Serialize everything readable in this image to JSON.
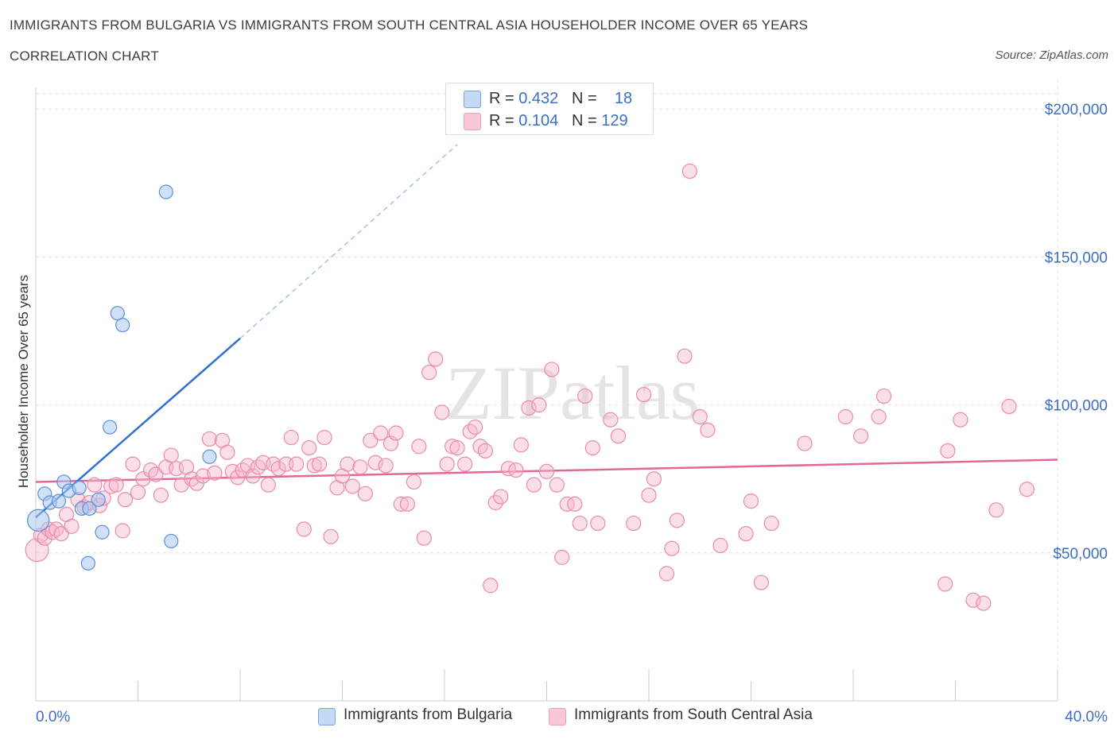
{
  "header": {
    "title": "IMMIGRANTS FROM BULGARIA VS IMMIGRANTS FROM SOUTH CENTRAL ASIA HOUSEHOLDER INCOME OVER 65 YEARS",
    "subtitle": "CORRELATION CHART",
    "source": "Source: ZipAtlas.com"
  },
  "watermark": "ZIPatlas",
  "legend_top": {
    "rows": [
      {
        "r_label": "R = ",
        "r_value": "0.432",
        "n_label": "N = ",
        "n_value": "18"
      },
      {
        "r_label": "R = ",
        "r_value": "0.104",
        "n_label": "N = ",
        "n_value": "129"
      }
    ]
  },
  "colors": {
    "bulgaria_fill": "#a9c8f0",
    "bulgaria_stroke": "#5b8fd6",
    "bulgaria_line": "#2f6fce",
    "sca_fill": "#f6b8cb",
    "sca_stroke": "#e98aa9",
    "sca_line": "#e2679a",
    "axis_text": "#3c6fc4",
    "grid": "#e3e3e3"
  },
  "chart_data": {
    "type": "scatter",
    "title": "IMMIGRANTS FROM BULGARIA VS IMMIGRANTS FROM SOUTH CENTRAL ASIA HOUSEHOLDER INCOME OVER 65 YEARS",
    "xlabel": "",
    "ylabel": "Householder Income Over 65 years",
    "xlim": [
      0,
      40
    ],
    "ylim": [
      0,
      210000
    ],
    "x_tick_labels": [
      "0.0%",
      "40.0%"
    ],
    "y_ticks": [
      50000,
      100000,
      150000,
      200000
    ],
    "y_tick_labels": [
      "$50,000",
      "$100,000",
      "$150,000",
      "$200,000"
    ],
    "grid": true,
    "legend_position": "bottom",
    "series": [
      {
        "name": "Immigrants from Bulgaria",
        "R": 0.432,
        "N": 18,
        "trend": {
          "x": [
            0,
            8.0
          ],
          "y": [
            62000,
            122500
          ],
          "dashed_to": {
            "x": 16.5,
            "y": 188000
          }
        },
        "points": [
          [
            0.1,
            61000,
            1.6
          ],
          [
            0.35,
            70000,
            1
          ],
          [
            0.55,
            67000,
            1
          ],
          [
            0.9,
            67500,
            1
          ],
          [
            1.1,
            74000,
            1
          ],
          [
            1.3,
            71000,
            1
          ],
          [
            1.7,
            72000,
            1
          ],
          [
            1.8,
            65000,
            1
          ],
          [
            2.1,
            65000,
            1
          ],
          [
            2.45,
            68000,
            1
          ],
          [
            2.6,
            57000,
            1
          ],
          [
            2.9,
            92500,
            1
          ],
          [
            3.2,
            131000,
            1
          ],
          [
            3.4,
            127000,
            1
          ],
          [
            2.05,
            46500,
            1
          ],
          [
            5.1,
            172000,
            1
          ],
          [
            5.3,
            54000,
            1
          ],
          [
            6.8,
            82500,
            1
          ]
        ]
      },
      {
        "name": "Immigrants from South Central Asia",
        "R": 0.104,
        "N": 129,
        "trend": {
          "x": [
            0,
            40
          ],
          "y": [
            74000,
            81500
          ]
        },
        "points": [
          [
            0.05,
            51000,
            1.6
          ],
          [
            0.2,
            56000,
            1
          ],
          [
            0.35,
            55000,
            1
          ],
          [
            0.5,
            58000,
            1
          ],
          [
            0.65,
            57000,
            1
          ],
          [
            0.8,
            58000,
            1
          ],
          [
            1.0,
            56500,
            1
          ],
          [
            1.2,
            63000,
            1
          ],
          [
            1.4,
            59000,
            1
          ],
          [
            1.65,
            68000,
            1
          ],
          [
            1.9,
            65500,
            1
          ],
          [
            2.1,
            67000,
            1
          ],
          [
            2.3,
            73000,
            1
          ],
          [
            2.5,
            66000,
            1
          ],
          [
            2.65,
            68500,
            1
          ],
          [
            2.95,
            72500,
            1
          ],
          [
            3.15,
            73000,
            1
          ],
          [
            3.4,
            57500,
            1
          ],
          [
            3.5,
            68000,
            1
          ],
          [
            3.8,
            80000,
            1
          ],
          [
            4.0,
            70500,
            1
          ],
          [
            4.2,
            75000,
            1
          ],
          [
            4.5,
            78000,
            1
          ],
          [
            4.7,
            76500,
            1
          ],
          [
            4.9,
            69500,
            1
          ],
          [
            5.1,
            79000,
            1
          ],
          [
            5.3,
            83000,
            1
          ],
          [
            5.5,
            78500,
            1
          ],
          [
            5.7,
            73000,
            1
          ],
          [
            5.9,
            79000,
            1
          ],
          [
            6.1,
            75000,
            1
          ],
          [
            6.3,
            73500,
            1
          ],
          [
            6.55,
            76000,
            1
          ],
          [
            6.8,
            88500,
            1
          ],
          [
            7.0,
            77000,
            1
          ],
          [
            7.3,
            88000,
            1
          ],
          [
            7.5,
            84000,
            1
          ],
          [
            7.7,
            77500,
            1
          ],
          [
            7.9,
            75500,
            1
          ],
          [
            8.1,
            78000,
            1
          ],
          [
            8.3,
            79500,
            1
          ],
          [
            8.5,
            76000,
            1
          ],
          [
            8.7,
            79000,
            1
          ],
          [
            8.9,
            80500,
            1
          ],
          [
            9.1,
            73000,
            1
          ],
          [
            9.3,
            80000,
            1
          ],
          [
            9.5,
            78500,
            1
          ],
          [
            9.8,
            80000,
            1
          ],
          [
            10.0,
            89000,
            1
          ],
          [
            10.2,
            80000,
            1
          ],
          [
            10.5,
            58000,
            1
          ],
          [
            10.7,
            85500,
            1
          ],
          [
            10.9,
            79500,
            1
          ],
          [
            11.1,
            80000,
            1
          ],
          [
            11.3,
            89000,
            1
          ],
          [
            11.55,
            55500,
            1
          ],
          [
            11.8,
            72000,
            1
          ],
          [
            12.0,
            76000,
            1
          ],
          [
            12.2,
            80000,
            1
          ],
          [
            12.4,
            72500,
            1
          ],
          [
            12.7,
            79000,
            1
          ],
          [
            12.9,
            70000,
            1
          ],
          [
            13.1,
            88000,
            1
          ],
          [
            13.3,
            80500,
            1
          ],
          [
            13.5,
            90500,
            1
          ],
          [
            13.7,
            79500,
            1
          ],
          [
            13.9,
            87000,
            1
          ],
          [
            14.1,
            90500,
            1
          ],
          [
            14.3,
            66500,
            1
          ],
          [
            14.55,
            66500,
            1
          ],
          [
            14.8,
            74000,
            1
          ],
          [
            15.0,
            86000,
            1
          ],
          [
            15.2,
            55000,
            1
          ],
          [
            15.4,
            111000,
            1
          ],
          [
            15.65,
            115500,
            1
          ],
          [
            15.9,
            97500,
            1
          ],
          [
            16.1,
            80000,
            1
          ],
          [
            16.3,
            86000,
            1
          ],
          [
            16.5,
            85500,
            1
          ],
          [
            16.8,
            80000,
            1
          ],
          [
            17.0,
            91000,
            1
          ],
          [
            17.2,
            92500,
            1
          ],
          [
            17.4,
            86000,
            1
          ],
          [
            17.6,
            84500,
            1
          ],
          [
            17.8,
            39000,
            1
          ],
          [
            18.0,
            67000,
            1
          ],
          [
            18.2,
            69000,
            1
          ],
          [
            18.5,
            78500,
            1
          ],
          [
            18.8,
            78000,
            1
          ],
          [
            19.0,
            86500,
            1
          ],
          [
            19.3,
            99000,
            1
          ],
          [
            19.5,
            73000,
            1
          ],
          [
            19.7,
            100000,
            1
          ],
          [
            20.0,
            77500,
            1
          ],
          [
            20.2,
            112000,
            1
          ],
          [
            20.4,
            73000,
            1
          ],
          [
            20.6,
            48500,
            1
          ],
          [
            20.8,
            66500,
            1
          ],
          [
            21.1,
            66500,
            1
          ],
          [
            21.3,
            60000,
            1
          ],
          [
            21.5,
            103000,
            1
          ],
          [
            21.8,
            85500,
            1
          ],
          [
            22.0,
            60000,
            1
          ],
          [
            22.5,
            95000,
            1
          ],
          [
            22.8,
            89500,
            1
          ],
          [
            23.4,
            60000,
            1
          ],
          [
            23.8,
            103500,
            1
          ],
          [
            24.0,
            69500,
            1
          ],
          [
            24.2,
            75000,
            1
          ],
          [
            24.7,
            43000,
            1
          ],
          [
            24.9,
            51500,
            1
          ],
          [
            25.1,
            61000,
            1
          ],
          [
            25.4,
            116500,
            1
          ],
          [
            25.6,
            179000,
            1
          ],
          [
            26.0,
            96000,
            1
          ],
          [
            26.3,
            91500,
            1
          ],
          [
            26.8,
            52500,
            1
          ],
          [
            27.8,
            56500,
            1
          ],
          [
            28.0,
            67500,
            1
          ],
          [
            28.4,
            40000,
            1
          ],
          [
            28.8,
            60000,
            1
          ],
          [
            30.1,
            87000,
            1
          ],
          [
            31.7,
            96000,
            1
          ],
          [
            32.3,
            89500,
            1
          ],
          [
            33.0,
            96000,
            1
          ],
          [
            33.2,
            103000,
            1
          ],
          [
            35.6,
            39500,
            1
          ],
          [
            35.7,
            84500,
            1
          ],
          [
            36.2,
            95000,
            1
          ],
          [
            36.7,
            34000,
            1
          ],
          [
            37.1,
            33000,
            1
          ],
          [
            37.6,
            64500,
            1
          ],
          [
            38.1,
            99500,
            1
          ],
          [
            38.8,
            71500,
            1
          ]
        ]
      }
    ]
  }
}
